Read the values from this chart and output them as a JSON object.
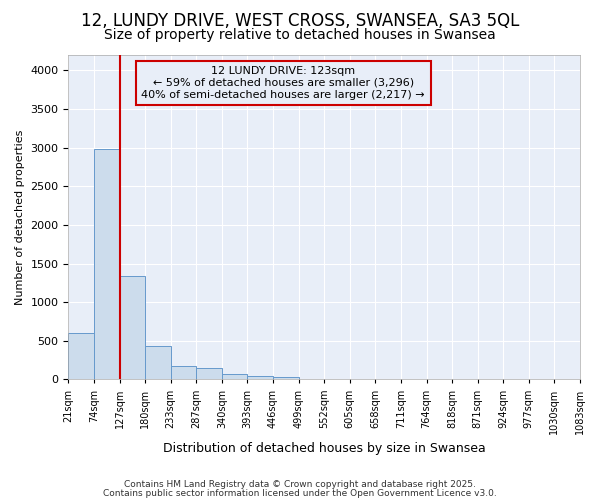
{
  "title1": "12, LUNDY DRIVE, WEST CROSS, SWANSEA, SA3 5QL",
  "title2": "Size of property relative to detached houses in Swansea",
  "xlabel": "Distribution of detached houses by size in Swansea",
  "ylabel": "Number of detached properties",
  "bin_labels": [
    "21sqm",
    "74sqm",
    "127sqm",
    "180sqm",
    "233sqm",
    "287sqm",
    "340sqm",
    "393sqm",
    "446sqm",
    "499sqm",
    "552sqm",
    "605sqm",
    "658sqm",
    "711sqm",
    "764sqm",
    "818sqm",
    "871sqm",
    "924sqm",
    "977sqm",
    "1030sqm",
    "1083sqm"
  ],
  "bar_values": [
    600,
    2980,
    1340,
    430,
    175,
    150,
    70,
    40,
    30,
    0,
    0,
    0,
    0,
    0,
    0,
    0,
    0,
    0,
    0,
    0
  ],
  "bar_color": "#ccdcec",
  "bar_edge_color": "#6699cc",
  "vline_color": "#cc0000",
  "annotation_line1": "12 LUNDY DRIVE: 123sqm",
  "annotation_line2": "← 59% of detached houses are smaller (3,296)",
  "annotation_line3": "40% of semi-detached houses are larger (2,217) →",
  "annotation_box_color": "#cc0000",
  "ylim": [
    0,
    4200
  ],
  "plot_bg_color": "#e8eef8",
  "fig_bg_color": "#ffffff",
  "grid_color": "#ffffff",
  "footer1": "Contains HM Land Registry data © Crown copyright and database right 2025.",
  "footer2": "Contains public sector information licensed under the Open Government Licence v3.0.",
  "title_fontsize": 12,
  "subtitle_fontsize": 10,
  "ytick_interval": 500
}
